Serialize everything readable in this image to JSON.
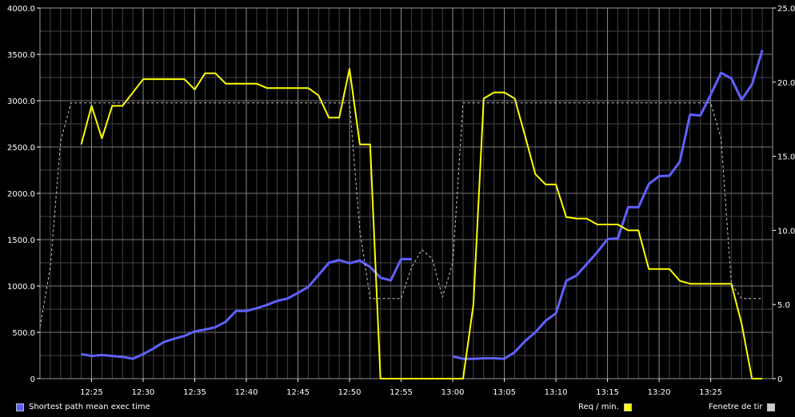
{
  "chart_data": {
    "type": "line",
    "xlim_minutes": [
      "12:20",
      "13:31"
    ],
    "ylim_left": [
      0,
      4000
    ],
    "ylim_right": [
      0,
      25
    ],
    "left_ticks": [
      "0",
      "500.0",
      "1000.0",
      "1500.0",
      "2000.0",
      "2500.0",
      "3000.0",
      "3500.0",
      "4000.0"
    ],
    "right_ticks": [
      "0",
      "5.0",
      "10.0",
      "15.0",
      "20.0",
      "25.0"
    ],
    "x_ticks": [
      "12:25",
      "12:30",
      "12:35",
      "12:40",
      "12:45",
      "12:50",
      "12:55",
      "13:00",
      "13:05",
      "13:10",
      "13:15",
      "13:20",
      "13:25"
    ],
    "grid": true,
    "legend_placement": "bottom",
    "series": [
      {
        "name": "Shortest path mean exec time",
        "axis": "left",
        "color": "#6060ff",
        "segments": [
          [
            [
              "12:24",
              265
            ],
            [
              "12:25",
              245
            ],
            [
              "12:26",
              255
            ],
            [
              "12:27",
              245
            ],
            [
              "12:28",
              235
            ],
            [
              "12:29",
              215
            ],
            [
              "12:30",
              265
            ],
            [
              "12:31",
              325
            ],
            [
              "12:32",
              395
            ],
            [
              "12:33",
              430
            ],
            [
              "12:34",
              460
            ],
            [
              "12:35",
              510
            ],
            [
              "12:36",
              530
            ],
            [
              "12:37",
              555
            ],
            [
              "12:38",
              615
            ],
            [
              "12:39",
              730
            ],
            [
              "12:40",
              730
            ],
            [
              "12:41",
              760
            ],
            [
              "12:42",
              795
            ],
            [
              "12:43",
              840
            ],
            [
              "12:44",
              865
            ],
            [
              "12:45",
              925
            ],
            [
              "12:46",
              990
            ],
            [
              "12:47",
              1120
            ],
            [
              "12:48",
              1250
            ],
            [
              "12:49",
              1280
            ],
            [
              "12:50",
              1245
            ],
            [
              "12:51",
              1275
            ],
            [
              "12:52",
              1205
            ],
            [
              "12:53",
              1090
            ],
            [
              "12:54",
              1060
            ],
            [
              "12:55",
              1290
            ],
            [
              "12:56",
              1290
            ]
          ],
          [
            [
              "13:00",
              240
            ],
            [
              "13:01",
              215
            ],
            [
              "13:02",
              215
            ],
            [
              "13:03",
              220
            ],
            [
              "13:04",
              220
            ],
            [
              "13:05",
              215
            ],
            [
              "13:06",
              285
            ],
            [
              "13:07",
              405
            ],
            [
              "13:08",
              500
            ],
            [
              "13:09",
              625
            ],
            [
              "13:10",
              705
            ],
            [
              "13:11",
              1055
            ],
            [
              "13:12",
              1115
            ],
            [
              "13:13",
              1240
            ],
            [
              "13:14",
              1365
            ],
            [
              "13:15",
              1505
            ],
            [
              "13:16",
              1515
            ],
            [
              "13:17",
              1850
            ],
            [
              "13:18",
              1850
            ],
            [
              "13:19",
              2100
            ],
            [
              "13:20",
              2185
            ],
            [
              "13:21",
              2190
            ],
            [
              "13:22",
              2340
            ],
            [
              "13:23",
              2850
            ],
            [
              "13:24",
              2840
            ],
            [
              "13:25",
              3065
            ],
            [
              "13:26",
              3300
            ],
            [
              "13:27",
              3240
            ],
            [
              "13:28",
              3010
            ],
            [
              "13:29",
              3175
            ],
            [
              "13:30",
              3545
            ]
          ]
        ]
      },
      {
        "name": "Req / min.",
        "axis": "right",
        "color": "#ffff00",
        "segments": [
          [
            [
              "12:24",
              15.8
            ],
            [
              "12:25",
              18.4
            ],
            [
              "12:26",
              16.2
            ],
            [
              "12:27",
              18.4
            ],
            [
              "12:28",
              18.4
            ],
            [
              "12:29",
              19.3
            ],
            [
              "12:30",
              20.2
            ],
            [
              "12:31",
              20.2
            ],
            [
              "12:32",
              20.2
            ],
            [
              "12:33",
              20.2
            ],
            [
              "12:34",
              20.2
            ],
            [
              "12:35",
              19.5
            ],
            [
              "12:36",
              20.6
            ],
            [
              "12:37",
              20.6
            ],
            [
              "12:38",
              19.9
            ],
            [
              "12:39",
              19.9
            ],
            [
              "12:40",
              19.9
            ],
            [
              "12:41",
              19.9
            ],
            [
              "12:42",
              19.6
            ],
            [
              "12:43",
              19.6
            ],
            [
              "12:44",
              19.6
            ],
            [
              "12:45",
              19.6
            ],
            [
              "12:46",
              19.6
            ],
            [
              "12:47",
              19.1
            ],
            [
              "12:48",
              17.6
            ],
            [
              "12:49",
              17.6
            ],
            [
              "12:50",
              20.9
            ],
            [
              "12:51",
              15.8
            ],
            [
              "12:52",
              15.8
            ],
            [
              "12:53",
              0
            ],
            [
              "12:54",
              0
            ],
            [
              "12:55",
              0
            ],
            [
              "12:56",
              0
            ],
            [
              "12:57",
              0
            ],
            [
              "12:58",
              0
            ],
            [
              "12:59",
              0
            ],
            [
              "13:00",
              0
            ],
            [
              "13:01",
              0
            ],
            [
              "13:02",
              5.0
            ],
            [
              "13:03",
              18.9
            ],
            [
              "13:04",
              19.3
            ],
            [
              "13:05",
              19.3
            ],
            [
              "13:06",
              18.9
            ],
            [
              "13:07",
              16.4
            ],
            [
              "13:08",
              13.8
            ],
            [
              "13:09",
              13.1
            ],
            [
              "13:10",
              13.1
            ],
            [
              "13:11",
              10.9
            ],
            [
              "13:12",
              10.8
            ],
            [
              "13:13",
              10.8
            ],
            [
              "13:14",
              10.4
            ],
            [
              "13:15",
              10.4
            ],
            [
              "13:16",
              10.4
            ],
            [
              "13:17",
              10.0
            ],
            [
              "13:18",
              10.0
            ],
            [
              "13:19",
              7.4
            ],
            [
              "13:20",
              7.4
            ],
            [
              "13:21",
              7.4
            ],
            [
              "13:22",
              6.6
            ],
            [
              "13:23",
              6.4
            ],
            [
              "13:24",
              6.4
            ],
            [
              "13:25",
              6.4
            ],
            [
              "13:26",
              6.4
            ],
            [
              "13:27",
              6.4
            ],
            [
              "13:28",
              3.7
            ],
            [
              "13:29",
              0
            ],
            [
              "13:30",
              0
            ]
          ]
        ]
      },
      {
        "name": "Fenetre de tir",
        "axis": "right",
        "color": "#cccccc",
        "dashed": true,
        "segments": [
          [
            [
              "12:20",
              3.5
            ],
            [
              "12:21",
              7.5
            ],
            [
              "12:22",
              16.0
            ],
            [
              "12:23",
              18.6
            ],
            [
              "12:24",
              18.6
            ],
            [
              "12:25",
              18.6
            ],
            [
              "12:30",
              18.6
            ],
            [
              "12:40",
              18.6
            ],
            [
              "12:45",
              18.6
            ],
            [
              "12:50",
              18.6
            ],
            [
              "12:51",
              10.0
            ],
            [
              "12:52",
              5.4
            ],
            [
              "12:53",
              5.4
            ],
            [
              "12:54",
              5.4
            ],
            [
              "12:55",
              5.4
            ],
            [
              "12:56",
              7.5
            ],
            [
              "12:57",
              8.7
            ],
            [
              "12:58",
              8.1
            ],
            [
              "12:59",
              5.5
            ],
            [
              "13:00",
              7.8
            ],
            [
              "13:01",
              18.6
            ],
            [
              "13:05",
              18.6
            ],
            [
              "13:10",
              18.6
            ],
            [
              "13:15",
              18.6
            ],
            [
              "13:20",
              18.6
            ],
            [
              "13:25",
              18.6
            ],
            [
              "13:26",
              16.2
            ],
            [
              "13:27",
              6.4
            ],
            [
              "13:28",
              5.4
            ],
            [
              "13:29",
              5.4
            ],
            [
              "13:30",
              5.4
            ]
          ]
        ]
      }
    ]
  },
  "legend": [
    {
      "label": "Shortest path mean exec time",
      "color": "#6060ff"
    },
    {
      "label": "Req / min.",
      "color": "#ffff00"
    },
    {
      "label": "Fenetre de tir",
      "color": "#cccccc"
    }
  ]
}
